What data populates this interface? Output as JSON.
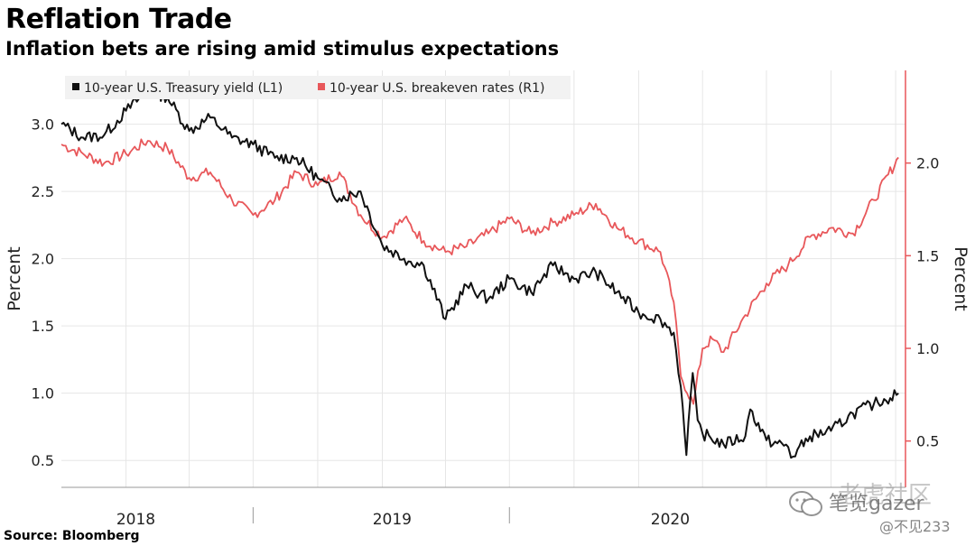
{
  "title": "Reflation Trade",
  "subtitle": "Inflation bets are rising amid stimulus expectations",
  "source": "Source: Bloomberg",
  "watermark": {
    "line1": "老虎社区",
    "line2": "笔览gazer",
    "line3": "@不见233"
  },
  "colors": {
    "yield": "#111111",
    "breakeven": "#e8575a",
    "plot_bg": "#ffffff",
    "grid": "#e6e6e6",
    "right_axis": "#e8575a"
  },
  "chart_data": {
    "type": "line",
    "title": "Reflation Trade",
    "subtitle": "Inflation bets are rising amid stimulus expectations",
    "x_range": [
      "2017-10-01",
      "2021-01-15"
    ],
    "x_ticks": [
      "2018",
      "2019",
      "2020"
    ],
    "left_axis": {
      "label": "Percent",
      "ylim": [
        0.3,
        3.4
      ],
      "ticks": [
        "0.5",
        "1.0",
        "1.5",
        "2.0",
        "2.5",
        "3.0"
      ]
    },
    "right_axis": {
      "label": "Percent",
      "ylim": [
        0.25,
        2.5
      ],
      "ticks": [
        "0.5",
        "1.0",
        "1.5",
        "2.0"
      ]
    },
    "legend": [
      {
        "label": "10-year U.S. Treasury yield (L1)",
        "color": "#111111"
      },
      {
        "label": "10-year U.S. breakeven rates (R1)",
        "color": "#e8575a"
      }
    ],
    "series": [
      {
        "name": "10-year U.S. Treasury yield (L1)",
        "axis": "left",
        "x": [
          "2017-10-01",
          "2017-11-01",
          "2017-12-01",
          "2018-01-01",
          "2018-02-01",
          "2018-03-01",
          "2018-04-01",
          "2018-05-01",
          "2018-06-01",
          "2018-07-01",
          "2018-08-01",
          "2018-09-01",
          "2018-10-01",
          "2018-11-01",
          "2018-12-01",
          "2019-01-01",
          "2019-02-01",
          "2019-03-01",
          "2019-04-01",
          "2019-05-01",
          "2019-06-01",
          "2019-07-01",
          "2019-08-01",
          "2019-09-01",
          "2019-10-01",
          "2019-11-01",
          "2019-12-01",
          "2020-01-01",
          "2020-02-01",
          "2020-02-20",
          "2020-03-01",
          "2020-03-09",
          "2020-03-18",
          "2020-03-25",
          "2020-04-01",
          "2020-05-01",
          "2020-06-01",
          "2020-06-08",
          "2020-07-01",
          "2020-08-01",
          "2020-08-05",
          "2020-09-01",
          "2020-10-01",
          "2020-11-01",
          "2020-12-01",
          "2021-01-05"
        ],
        "values": [
          3.0,
          2.9,
          2.92,
          3.1,
          3.25,
          3.2,
          2.95,
          3.05,
          2.9,
          2.85,
          2.75,
          2.75,
          2.6,
          2.45,
          2.5,
          2.1,
          2.0,
          1.95,
          1.55,
          1.8,
          1.7,
          1.85,
          1.75,
          1.95,
          1.85,
          1.9,
          1.75,
          1.6,
          1.55,
          1.45,
          1.05,
          0.54,
          1.15,
          0.8,
          0.7,
          0.62,
          0.68,
          0.88,
          0.65,
          0.6,
          0.52,
          0.68,
          0.72,
          0.85,
          0.92,
          1.0
        ]
      },
      {
        "name": "10-year U.S. breakeven rates (R1)",
        "axis": "right",
        "x": [
          "2017-10-01",
          "2017-11-01",
          "2017-12-01",
          "2018-01-01",
          "2018-02-01",
          "2018-03-01",
          "2018-04-01",
          "2018-05-01",
          "2018-06-01",
          "2018-07-01",
          "2018-08-01",
          "2018-09-01",
          "2018-10-01",
          "2018-11-01",
          "2018-12-01",
          "2019-01-01",
          "2019-02-01",
          "2019-03-01",
          "2019-04-01",
          "2019-05-01",
          "2019-06-01",
          "2019-07-01",
          "2019-08-01",
          "2019-09-01",
          "2019-10-01",
          "2019-11-01",
          "2019-12-01",
          "2020-01-01",
          "2020-02-01",
          "2020-02-20",
          "2020-03-01",
          "2020-03-19",
          "2020-04-01",
          "2020-04-15",
          "2020-05-01",
          "2020-06-01",
          "2020-07-01",
          "2020-08-01",
          "2020-09-01",
          "2020-10-01",
          "2020-11-01",
          "2020-12-01",
          "2021-01-05"
        ],
        "values": [
          2.1,
          2.05,
          2.0,
          2.05,
          2.12,
          2.08,
          1.92,
          1.95,
          1.8,
          1.72,
          1.8,
          1.95,
          1.88,
          1.95,
          1.72,
          1.6,
          1.7,
          1.58,
          1.52,
          1.55,
          1.62,
          1.7,
          1.62,
          1.68,
          1.72,
          1.78,
          1.65,
          1.58,
          1.52,
          1.25,
          0.85,
          0.7,
          1.0,
          1.05,
          0.98,
          1.18,
          1.35,
          1.45,
          1.6,
          1.65,
          1.62,
          1.8,
          2.03
        ]
      }
    ]
  }
}
